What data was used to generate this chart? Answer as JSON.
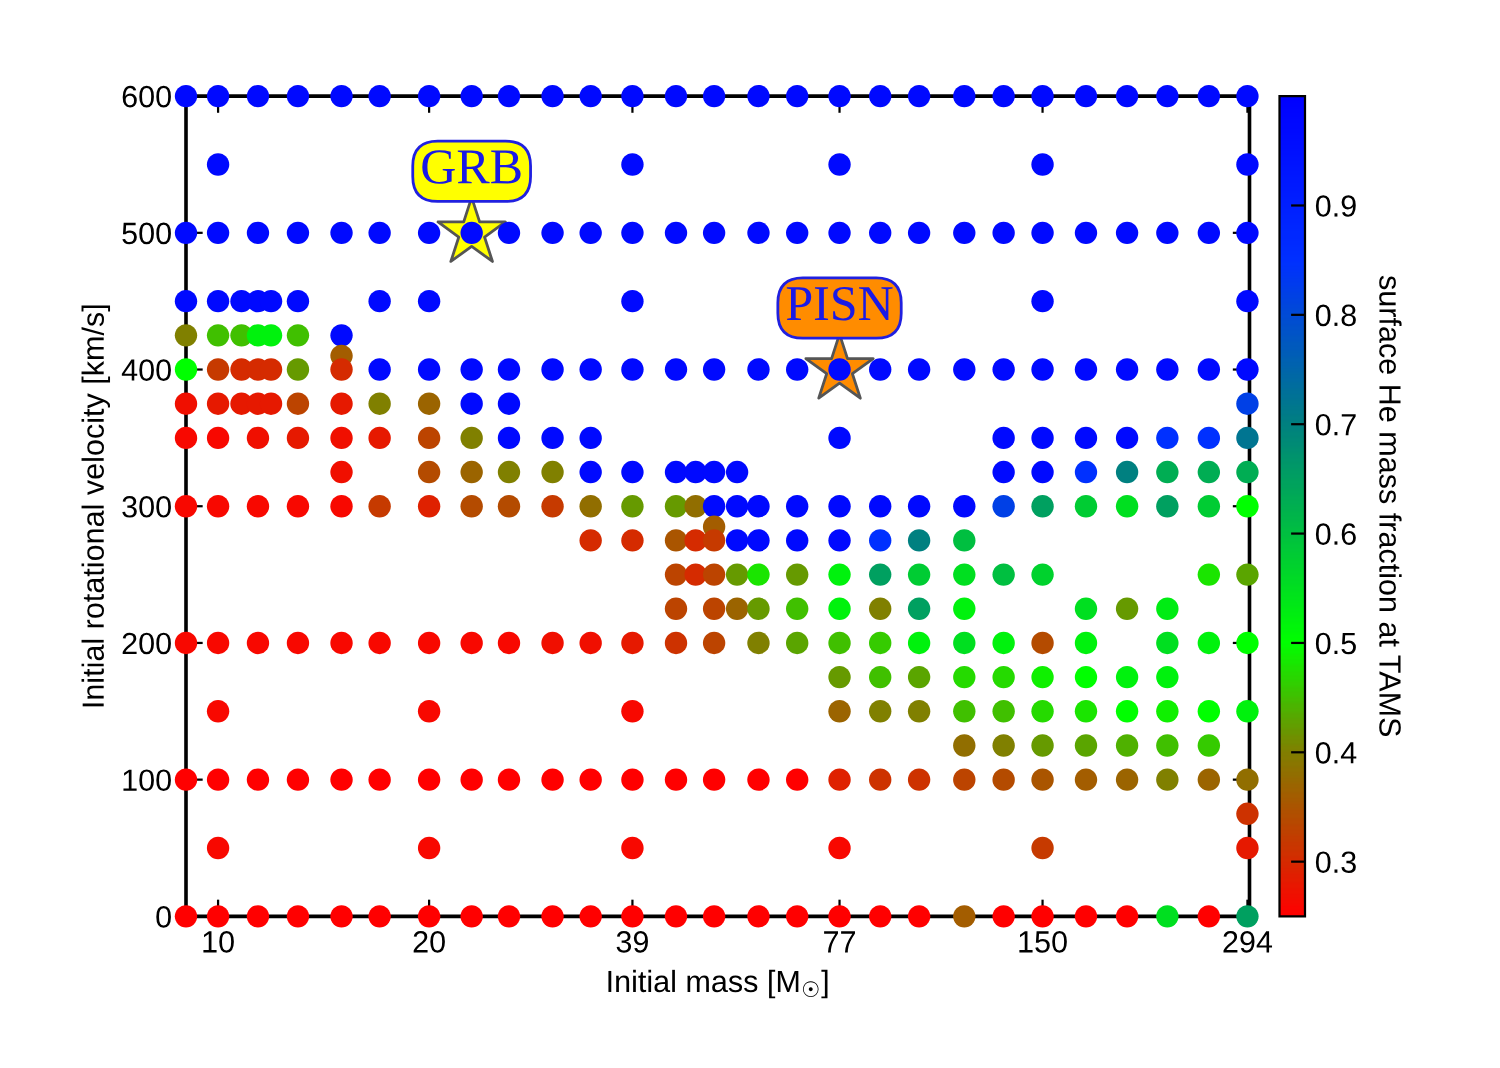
{
  "chart_data": {
    "type": "scatter",
    "marker": "circle",
    "log": "x",
    "xlabel": "Initial mass [M$_{☉}$]",
    "ylabel": "Initial rotational velocity [km/s]",
    "clabel": "surface He mass fraction at TAMS",
    "xlim": [
      9,
      296
    ],
    "xticks": [
      10,
      20,
      39,
      77,
      150,
      294
    ],
    "ylim": [
      0,
      600
    ],
    "yticks": [
      0,
      100,
      200,
      300,
      400,
      500,
      600
    ],
    "clim": [
      0.25,
      1.0
    ],
    "cticks": [
      0.3,
      0.4,
      0.5,
      0.6,
      0.7,
      0.8,
      0.9
    ],
    "annotations": [
      {
        "text": "GRB",
        "x": 23,
        "y": 500
      },
      {
        "text": "PISN",
        "x": 77,
        "y": 400
      }
    ],
    "x": [
      9,
      10,
      11.4,
      13,
      15,
      17,
      20,
      23,
      26,
      30,
      34,
      39,
      45,
      51,
      59,
      67,
      77,
      88,
      100,
      116,
      132,
      150,
      173,
      198,
      226,
      259,
      294,
      10,
      39,
      77,
      150,
      294,
      9,
      10,
      11.4,
      13,
      15,
      17,
      20,
      23,
      26,
      30,
      34,
      39,
      45,
      51,
      59,
      67,
      77,
      88,
      100,
      116,
      132,
      150,
      173,
      198,
      226,
      259,
      294,
      9,
      10,
      10.8,
      11.4,
      11.9,
      13,
      17,
      20,
      39,
      150,
      294,
      9,
      10,
      10.8,
      11.4,
      11.9,
      13,
      15,
      15,
      9,
      10,
      10.8,
      11.4,
      11.9,
      13,
      15,
      17,
      20,
      23,
      26,
      30,
      34,
      39,
      45,
      51,
      59,
      67,
      77,
      88,
      100,
      116,
      132,
      150,
      173,
      198,
      226,
      259,
      294,
      9,
      10,
      10.8,
      11.4,
      11.9,
      13,
      15,
      17,
      20,
      23,
      26,
      294,
      9,
      10,
      11.4,
      13,
      15,
      17,
      20,
      23,
      26,
      30,
      34,
      77,
      132,
      150,
      173,
      198,
      226,
      259,
      294,
      15,
      20,
      23,
      26,
      30,
      34,
      39,
      45,
      48,
      51,
      55,
      132,
      150,
      173,
      198,
      226,
      259,
      294,
      9,
      10,
      11.4,
      13,
      15,
      17,
      20,
      23,
      26,
      30,
      34,
      39,
      45,
      48,
      51,
      55,
      59,
      67,
      77,
      88,
      100,
      116,
      132,
      150,
      173,
      198,
      226,
      259,
      294,
      51,
      34,
      39,
      45,
      48,
      51,
      55,
      59,
      67,
      77,
      88,
      100,
      116,
      45,
      48,
      51,
      55,
      59,
      67,
      77,
      88,
      100,
      116,
      132,
      150,
      259,
      294,
      45,
      51,
      55,
      59,
      67,
      77,
      88,
      100,
      116,
      173,
      198,
      226,
      9,
      10,
      11.4,
      13,
      15,
      17,
      20,
      23,
      26,
      30,
      34,
      39,
      45,
      51,
      59,
      67,
      77,
      88,
      100,
      116,
      132,
      150,
      173,
      226,
      259,
      294,
      77,
      88,
      100,
      116,
      132,
      150,
      173,
      198,
      226,
      10,
      20,
      39,
      77,
      88,
      100,
      116,
      132,
      150,
      173,
      198,
      226,
      259,
      294,
      116,
      132,
      150,
      173,
      198,
      226,
      259,
      9,
      10,
      11.4,
      13,
      15,
      17,
      20,
      23,
      26,
      30,
      34,
      39,
      45,
      51,
      59,
      67,
      77,
      88,
      100,
      116,
      132,
      150,
      173,
      198,
      226,
      259,
      294,
      294,
      10,
      20,
      39,
      77,
      150,
      294,
      9,
      10,
      11.4,
      13,
      15,
      17,
      20,
      23,
      26,
      30,
      34,
      39,
      45,
      51,
      59,
      67,
      77,
      88,
      100,
      116,
      132,
      150,
      173,
      198,
      226,
      259,
      294
    ],
    "values": [
      600,
      600,
      600,
      600,
      600,
      600,
      600,
      600,
      600,
      600,
      600,
      600,
      600,
      600,
      600,
      600,
      600,
      600,
      600,
      600,
      600,
      600,
      600,
      600,
      600,
      600,
      600,
      550,
      550,
      550,
      550,
      550,
      500,
      500,
      500,
      500,
      500,
      500,
      500,
      500,
      500,
      500,
      500,
      500,
      500,
      500,
      500,
      500,
      500,
      500,
      500,
      500,
      500,
      500,
      500,
      500,
      500,
      500,
      500,
      450,
      450,
      450,
      450,
      450,
      450,
      450,
      450,
      450,
      450,
      450,
      425,
      425,
      425,
      425,
      425,
      425,
      425,
      410,
      400,
      400,
      400,
      400,
      400,
      400,
      400,
      400,
      400,
      400,
      400,
      400,
      400,
      400,
      400,
      400,
      400,
      400,
      400,
      400,
      400,
      400,
      400,
      400,
      400,
      400,
      400,
      400,
      400,
      375,
      375,
      375,
      375,
      375,
      375,
      375,
      375,
      375,
      375,
      375,
      375,
      350,
      350,
      350,
      350,
      350,
      350,
      350,
      350,
      350,
      350,
      350,
      350,
      350,
      350,
      350,
      350,
      350,
      350,
      350,
      325,
      325,
      325,
      325,
      325,
      325,
      325,
      325,
      325,
      325,
      325,
      325,
      325,
      325,
      325,
      325,
      325,
      325,
      300,
      300,
      300,
      300,
      300,
      300,
      300,
      300,
      300,
      300,
      300,
      300,
      300,
      300,
      300,
      300,
      300,
      300,
      300,
      300,
      300,
      300,
      300,
      300,
      300,
      300,
      300,
      300,
      300,
      285,
      275,
      275,
      275,
      275,
      275,
      275,
      275,
      275,
      275,
      275,
      275,
      275,
      250,
      250,
      250,
      250,
      250,
      250,
      250,
      250,
      250,
      250,
      250,
      250,
      250,
      250,
      225,
      225,
      225,
      225,
      225,
      225,
      225,
      225,
      225,
      225,
      225,
      225,
      200,
      200,
      200,
      200,
      200,
      200,
      200,
      200,
      200,
      200,
      200,
      200,
      200,
      200,
      200,
      200,
      200,
      200,
      200,
      200,
      200,
      200,
      200,
      200,
      200,
      200,
      175,
      175,
      175,
      175,
      175,
      175,
      175,
      175,
      175,
      150,
      150,
      150,
      150,
      150,
      150,
      150,
      150,
      150,
      150,
      150,
      150,
      150,
      150,
      125,
      125,
      125,
      125,
      125,
      125,
      125,
      100,
      100,
      100,
      100,
      100,
      100,
      100,
      100,
      100,
      100,
      100,
      100,
      100,
      100,
      100,
      100,
      100,
      100,
      100,
      100,
      100,
      100,
      100,
      100,
      100,
      100,
      100,
      75,
      50,
      50,
      50,
      50,
      50,
      50,
      0,
      0,
      0,
      0,
      0,
      0,
      0,
      0,
      0,
      0,
      0,
      0,
      0,
      0,
      0,
      0,
      0,
      0,
      0,
      0,
      0,
      0,
      0,
      0,
      0,
      0,
      0
    ],
    "cvalues": [
      0.97,
      0.97,
      0.97,
      0.97,
      0.97,
      0.97,
      0.97,
      0.97,
      0.97,
      0.97,
      0.97,
      0.97,
      0.97,
      0.97,
      0.97,
      0.97,
      0.97,
      0.97,
      0.97,
      0.97,
      0.97,
      0.97,
      0.97,
      0.97,
      0.97,
      0.97,
      0.97,
      0.97,
      0.97,
      0.97,
      0.97,
      0.97,
      0.97,
      0.97,
      0.97,
      0.97,
      0.97,
      0.97,
      0.97,
      0.97,
      0.97,
      0.97,
      0.97,
      0.97,
      0.97,
      0.97,
      0.97,
      0.97,
      0.97,
      0.97,
      0.97,
      0.97,
      0.97,
      0.97,
      0.97,
      0.97,
      0.97,
      0.97,
      0.97,
      0.97,
      0.97,
      0.97,
      0.97,
      0.97,
      0.97,
      0.97,
      0.97,
      0.97,
      0.97,
      0.97,
      0.4,
      0.45,
      0.45,
      0.52,
      0.52,
      0.45,
      0.97,
      0.36,
      0.5,
      0.32,
      0.3,
      0.3,
      0.3,
      0.42,
      0.3,
      0.97,
      0.97,
      0.97,
      0.97,
      0.97,
      0.97,
      0.97,
      0.97,
      0.97,
      0.97,
      0.97,
      0.97,
      0.97,
      0.97,
      0.97,
      0.97,
      0.97,
      0.97,
      0.97,
      0.97,
      0.97,
      0.97,
      0.27,
      0.28,
      0.28,
      0.28,
      0.28,
      0.33,
      0.28,
      0.4,
      0.37,
      0.97,
      0.97,
      0.82,
      0.26,
      0.26,
      0.27,
      0.28,
      0.27,
      0.28,
      0.33,
      0.4,
      0.97,
      0.97,
      0.97,
      0.97,
      0.97,
      0.97,
      0.97,
      0.97,
      0.85,
      0.85,
      0.72,
      0.27,
      0.34,
      0.37,
      0.4,
      0.4,
      0.97,
      0.97,
      0.97,
      0.97,
      0.97,
      0.97,
      0.97,
      0.97,
      0.85,
      0.7,
      0.63,
      0.63,
      0.63,
      0.26,
      0.26,
      0.26,
      0.26,
      0.26,
      0.32,
      0.29,
      0.34,
      0.34,
      0.32,
      0.38,
      0.42,
      0.42,
      0.38,
      0.97,
      0.97,
      0.97,
      0.97,
      0.97,
      0.97,
      0.97,
      0.97,
      0.82,
      0.65,
      0.58,
      0.55,
      0.65,
      0.58,
      0.5,
      0.36,
      0.3,
      0.3,
      0.35,
      0.3,
      0.32,
      0.97,
      0.97,
      0.97,
      0.97,
      0.85,
      0.7,
      0.6,
      0.33,
      0.3,
      0.33,
      0.42,
      0.48,
      0.42,
      0.52,
      0.65,
      0.58,
      0.55,
      0.6,
      0.57,
      0.48,
      0.43,
      0.33,
      0.33,
      0.37,
      0.42,
      0.45,
      0.52,
      0.4,
      0.65,
      0.52,
      0.55,
      0.42,
      0.53,
      0.26,
      0.26,
      0.26,
      0.26,
      0.26,
      0.26,
      0.26,
      0.26,
      0.26,
      0.27,
      0.27,
      0.28,
      0.31,
      0.33,
      0.4,
      0.43,
      0.45,
      0.46,
      0.52,
      0.55,
      0.52,
      0.34,
      0.52,
      0.55,
      0.52,
      0.5,
      0.42,
      0.45,
      0.43,
      0.47,
      0.47,
      0.49,
      0.5,
      0.52,
      0.52,
      0.26,
      0.26,
      0.26,
      0.37,
      0.4,
      0.4,
      0.45,
      0.45,
      0.47,
      0.48,
      0.5,
      0.49,
      0.5,
      0.52,
      0.38,
      0.4,
      0.42,
      0.43,
      0.44,
      0.45,
      0.46,
      0.25,
      0.25,
      0.25,
      0.25,
      0.25,
      0.25,
      0.25,
      0.25,
      0.25,
      0.25,
      0.25,
      0.25,
      0.25,
      0.25,
      0.25,
      0.25,
      0.29,
      0.31,
      0.31,
      0.33,
      0.34,
      0.35,
      0.36,
      0.37,
      0.4,
      0.37,
      0.38,
      0.31,
      0.26,
      0.26,
      0.26,
      0.26,
      0.32,
      0.28,
      0.25,
      0.25,
      0.25,
      0.25,
      0.25,
      0.25,
      0.25,
      0.25,
      0.25,
      0.25,
      0.25,
      0.25,
      0.25,
      0.25,
      0.25,
      0.25,
      0.25,
      0.25,
      0.25,
      0.36,
      0.25,
      0.25,
      0.25,
      0.25,
      0.55,
      0.25,
      0.65
    ]
  }
}
